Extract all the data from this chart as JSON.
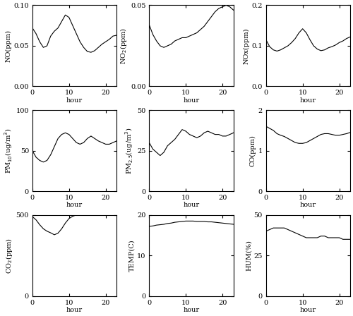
{
  "subplots": [
    {
      "ylabel": "NO(ppm)",
      "ylim": [
        0,
        0.1
      ],
      "yticks": [
        0,
        0.05,
        0.1
      ],
      "data_x": [
        0,
        1,
        2,
        3,
        4,
        5,
        6,
        7,
        8,
        9,
        10,
        11,
        12,
        13,
        14,
        15,
        16,
        17,
        18,
        19,
        20,
        21,
        22,
        23
      ],
      "data_y": [
        0.072,
        0.065,
        0.055,
        0.048,
        0.05,
        0.062,
        0.068,
        0.072,
        0.08,
        0.088,
        0.085,
        0.075,
        0.065,
        0.055,
        0.048,
        0.043,
        0.042,
        0.044,
        0.048,
        0.052,
        0.055,
        0.058,
        0.062,
        0.063
      ]
    },
    {
      "ylabel": "NO$_2$(ppm)",
      "ylim": [
        0,
        0.05
      ],
      "yticks": [
        0,
        0.05
      ],
      "data_x": [
        0,
        1,
        2,
        3,
        4,
        5,
        6,
        7,
        8,
        9,
        10,
        11,
        12,
        13,
        14,
        15,
        16,
        17,
        18,
        19,
        20,
        21,
        22,
        23
      ],
      "data_y": [
        0.038,
        0.032,
        0.028,
        0.025,
        0.024,
        0.025,
        0.026,
        0.028,
        0.029,
        0.03,
        0.03,
        0.031,
        0.032,
        0.033,
        0.035,
        0.037,
        0.04,
        0.043,
        0.046,
        0.048,
        0.049,
        0.05,
        0.049,
        0.047
      ]
    },
    {
      "ylabel": "NOx(ppm)",
      "ylim": [
        0,
        0.2
      ],
      "yticks": [
        0,
        0.1,
        0.2
      ],
      "data_x": [
        0,
        1,
        2,
        3,
        4,
        5,
        6,
        7,
        8,
        9,
        10,
        11,
        12,
        13,
        14,
        15,
        16,
        17,
        18,
        19,
        20,
        21,
        22,
        23
      ],
      "data_y": [
        0.115,
        0.098,
        0.09,
        0.087,
        0.09,
        0.095,
        0.1,
        0.108,
        0.118,
        0.132,
        0.142,
        0.132,
        0.115,
        0.1,
        0.092,
        0.088,
        0.09,
        0.095,
        0.098,
        0.102,
        0.108,
        0.112,
        0.118,
        0.122
      ]
    },
    {
      "ylabel": "PM$_{10}$(ug/m$^3$)",
      "ylim": [
        0,
        100
      ],
      "yticks": [
        0,
        50,
        100
      ],
      "data_x": [
        0,
        1,
        2,
        3,
        4,
        5,
        6,
        7,
        8,
        9,
        10,
        11,
        12,
        13,
        14,
        15,
        16,
        17,
        18,
        19,
        20,
        21,
        22,
        23
      ],
      "data_y": [
        50,
        42,
        38,
        36,
        38,
        45,
        55,
        65,
        70,
        72,
        70,
        65,
        60,
        58,
        60,
        65,
        68,
        65,
        62,
        60,
        58,
        58,
        60,
        62
      ]
    },
    {
      "ylabel": "PM$_{2.5}$(ug/m$^3$)",
      "ylim": [
        0,
        50
      ],
      "yticks": [
        0,
        25,
        50
      ],
      "data_x": [
        0,
        1,
        2,
        3,
        4,
        5,
        6,
        7,
        8,
        9,
        10,
        11,
        12,
        13,
        14,
        15,
        16,
        17,
        18,
        19,
        20,
        21,
        22,
        23
      ],
      "data_y": [
        30,
        26,
        24,
        22,
        24,
        28,
        30,
        32,
        35,
        38,
        37,
        35,
        34,
        33,
        34,
        36,
        37,
        36,
        35,
        35,
        34,
        34,
        35,
        36
      ]
    },
    {
      "ylabel": "CO(ppm)",
      "ylim": [
        0,
        2
      ],
      "yticks": [
        0,
        1,
        2
      ],
      "data_x": [
        0,
        1,
        2,
        3,
        4,
        5,
        6,
        7,
        8,
        9,
        10,
        11,
        12,
        13,
        14,
        15,
        16,
        17,
        18,
        19,
        20,
        21,
        22,
        23
      ],
      "data_y": [
        1.6,
        1.55,
        1.5,
        1.42,
        1.38,
        1.35,
        1.3,
        1.25,
        1.2,
        1.18,
        1.18,
        1.2,
        1.25,
        1.3,
        1.35,
        1.4,
        1.42,
        1.42,
        1.4,
        1.38,
        1.38,
        1.4,
        1.42,
        1.45
      ]
    },
    {
      "ylabel": "CO$_2$(ppm)",
      "ylim": [
        0,
        500
      ],
      "yticks": [
        0,
        500
      ],
      "data_x": [
        0,
        1,
        2,
        3,
        4,
        5,
        6,
        7,
        8,
        9,
        10,
        11,
        12,
        13,
        14,
        15,
        16,
        17,
        18,
        19,
        20,
        21,
        22,
        23
      ],
      "data_y": [
        490,
        470,
        440,
        415,
        400,
        390,
        378,
        388,
        415,
        450,
        478,
        492,
        500,
        505,
        506,
        506,
        506,
        506,
        505,
        505,
        505,
        505,
        505,
        505
      ]
    },
    {
      "ylabel": "TEMP(C)",
      "ylim": [
        0,
        20
      ],
      "yticks": [
        0,
        10,
        20
      ],
      "data_x": [
        0,
        1,
        2,
        3,
        4,
        5,
        6,
        7,
        8,
        9,
        10,
        11,
        12,
        13,
        14,
        15,
        16,
        17,
        18,
        19,
        20,
        21,
        22,
        23
      ],
      "data_y": [
        17.2,
        17.3,
        17.5,
        17.6,
        17.7,
        17.9,
        18.0,
        18.2,
        18.3,
        18.4,
        18.5,
        18.5,
        18.5,
        18.4,
        18.4,
        18.4,
        18.3,
        18.3,
        18.2,
        18.1,
        18.0,
        17.9,
        17.8,
        17.7
      ]
    },
    {
      "ylabel": "HUM(%)",
      "ylim": [
        0,
        50
      ],
      "yticks": [
        0,
        25,
        50
      ],
      "data_x": [
        0,
        1,
        2,
        3,
        4,
        5,
        6,
        7,
        8,
        9,
        10,
        11,
        12,
        13,
        14,
        15,
        16,
        17,
        18,
        19,
        20,
        21,
        22,
        23
      ],
      "data_y": [
        40,
        41,
        42,
        42,
        42,
        42,
        41,
        40,
        39,
        38,
        37,
        36,
        36,
        36,
        36,
        37,
        37,
        36,
        36,
        36,
        36,
        35,
        35,
        35
      ]
    }
  ],
  "xlabel": "hour",
  "xlim": [
    0,
    23
  ],
  "xticks": [
    0,
    10,
    20
  ],
  "line_color": "#000000",
  "line_width": 0.8,
  "bg_color": "#ffffff",
  "fig_width": 5.0,
  "fig_height": 4.48,
  "dpi": 100
}
